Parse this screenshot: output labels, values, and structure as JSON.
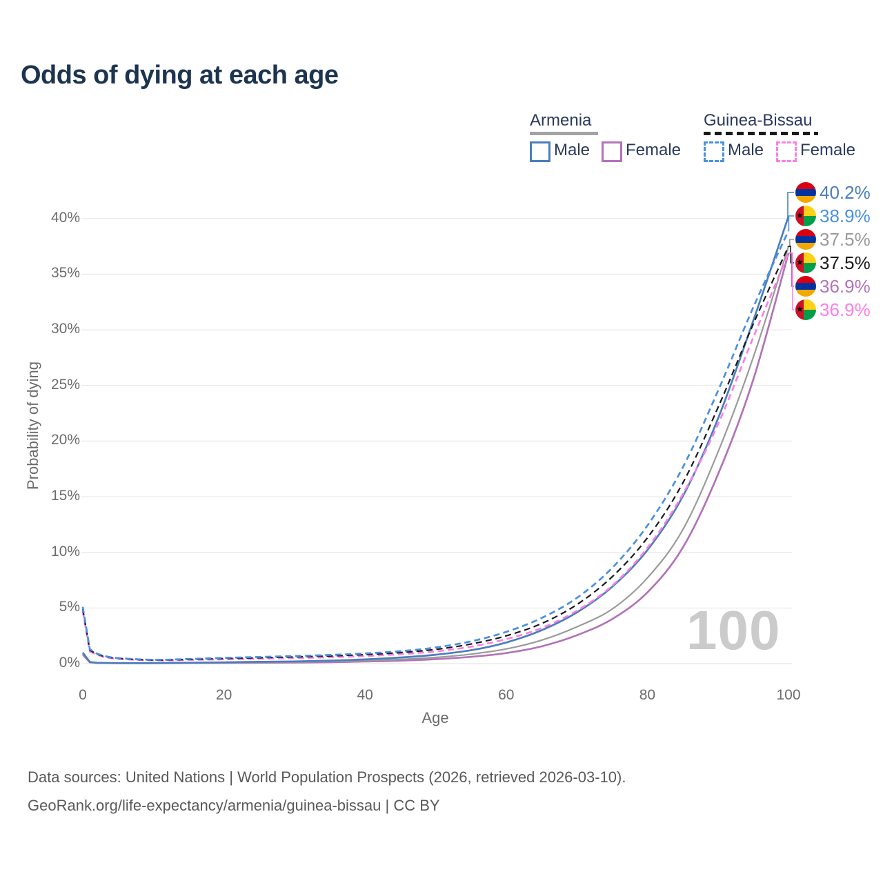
{
  "title": "Odds of dying at each age",
  "legend": {
    "groups": [
      {
        "name": "Armenia",
        "underline": "solid",
        "underline_color": "#a3a3a3",
        "items": [
          {
            "label": "Male",
            "color": "#4a7ebc"
          },
          {
            "label": "Female",
            "color": "#b273b8"
          }
        ]
      },
      {
        "name": "Guinea-Bissau",
        "underline": "dashed",
        "underline_color": "#1a1a1a",
        "items": [
          {
            "label": "Male",
            "color": "#4a90e2"
          },
          {
            "label": "Female",
            "color": "#fb7fe4"
          }
        ]
      }
    ]
  },
  "watermark": "100",
  "footer": {
    "line1": "Data sources: United Nations | World Population Prospects (2026, retrieved 2026-03-10).",
    "line2": "GeoRank.org/life-expectancy/armenia/guinea-bissau | CC BY"
  },
  "chart_data": {
    "type": "line",
    "title": "Odds of dying at each age",
    "xlabel": "Age",
    "ylabel": "Probability of dying",
    "xlim": [
      0,
      100
    ],
    "ylim": [
      0,
      42
    ],
    "x_ticks": [
      0,
      20,
      40,
      60,
      80,
      100
    ],
    "y_ticks": [
      0,
      5,
      10,
      15,
      20,
      25,
      30,
      35,
      40
    ],
    "y_tick_suffix": "%",
    "grid": "horizontal",
    "legend_position": "top-right",
    "x": [
      0,
      1,
      2,
      3,
      5,
      10,
      15,
      20,
      25,
      30,
      35,
      40,
      45,
      50,
      55,
      60,
      65,
      70,
      75,
      80,
      85,
      90,
      95,
      100
    ],
    "series": [
      {
        "name": "Armenia Male",
        "flag": "armenia",
        "style": "solid",
        "color": "#4a7ebc",
        "end_label": "40.2%",
        "end_value": 40.2,
        "values": [
          1.0,
          0.15,
          0.08,
          0.06,
          0.05,
          0.05,
          0.08,
          0.12,
          0.16,
          0.2,
          0.27,
          0.38,
          0.55,
          0.8,
          1.2,
          1.9,
          3.0,
          4.6,
          6.9,
          10.2,
          15.0,
          22.0,
          30.8,
          40.2
        ]
      },
      {
        "name": "Guinea-Bissau Male",
        "flag": "guinea-bissau",
        "style": "dashed",
        "color": "#4a90e2",
        "end_label": "38.9%",
        "end_value": 38.9,
        "values": [
          5.1,
          1.3,
          0.9,
          0.7,
          0.5,
          0.35,
          0.42,
          0.52,
          0.6,
          0.68,
          0.78,
          0.92,
          1.12,
          1.45,
          2.0,
          2.85,
          4.1,
          5.9,
          8.6,
          12.4,
          17.6,
          24.5,
          32.0,
          38.9
        ]
      },
      {
        "name": "Armenia Both sexes",
        "flag": "armenia",
        "style": "solid",
        "color": "#9a9a9a",
        "end_label": "37.5%",
        "end_value": 37.5,
        "values": [
          0.9,
          0.14,
          0.07,
          0.055,
          0.045,
          0.045,
          0.065,
          0.09,
          0.11,
          0.14,
          0.19,
          0.27,
          0.38,
          0.56,
          0.85,
          1.32,
          2.1,
          3.3,
          4.9,
          7.7,
          12.0,
          19.0,
          27.5,
          37.5
        ]
      },
      {
        "name": "Guinea-Bissau Both sexes",
        "flag": "guinea-bissau",
        "style": "dashed",
        "color": "#1a1a1a",
        "end_label": "37.5%",
        "end_value": 37.5,
        "values": [
          4.9,
          1.2,
          0.85,
          0.65,
          0.47,
          0.32,
          0.38,
          0.46,
          0.53,
          0.6,
          0.69,
          0.81,
          0.99,
          1.28,
          1.76,
          2.5,
          3.6,
          5.3,
          7.8,
          11.3,
          16.2,
          23.0,
          30.5,
          37.5
        ]
      },
      {
        "name": "Armenia Female",
        "flag": "armenia",
        "style": "solid",
        "color": "#b273b8",
        "end_label": "36.9%",
        "end_value": 36.9,
        "values": [
          0.8,
          0.12,
          0.06,
          0.05,
          0.04,
          0.04,
          0.05,
          0.06,
          0.08,
          0.1,
          0.13,
          0.19,
          0.27,
          0.4,
          0.61,
          0.95,
          1.55,
          2.55,
          4.0,
          6.4,
          10.4,
          17.0,
          25.5,
          36.9
        ]
      },
      {
        "name": "Guinea-Bissau Female",
        "flag": "guinea-bissau",
        "style": "dashed",
        "color": "#fb7fe4",
        "end_label": "36.9%",
        "end_value": 36.9,
        "values": [
          4.7,
          1.1,
          0.8,
          0.6,
          0.43,
          0.29,
          0.33,
          0.39,
          0.44,
          0.5,
          0.58,
          0.68,
          0.85,
          1.1,
          1.52,
          2.2,
          3.2,
          4.75,
          7.0,
          10.4,
          15.2,
          21.5,
          29.3,
          36.9
        ]
      }
    ]
  }
}
